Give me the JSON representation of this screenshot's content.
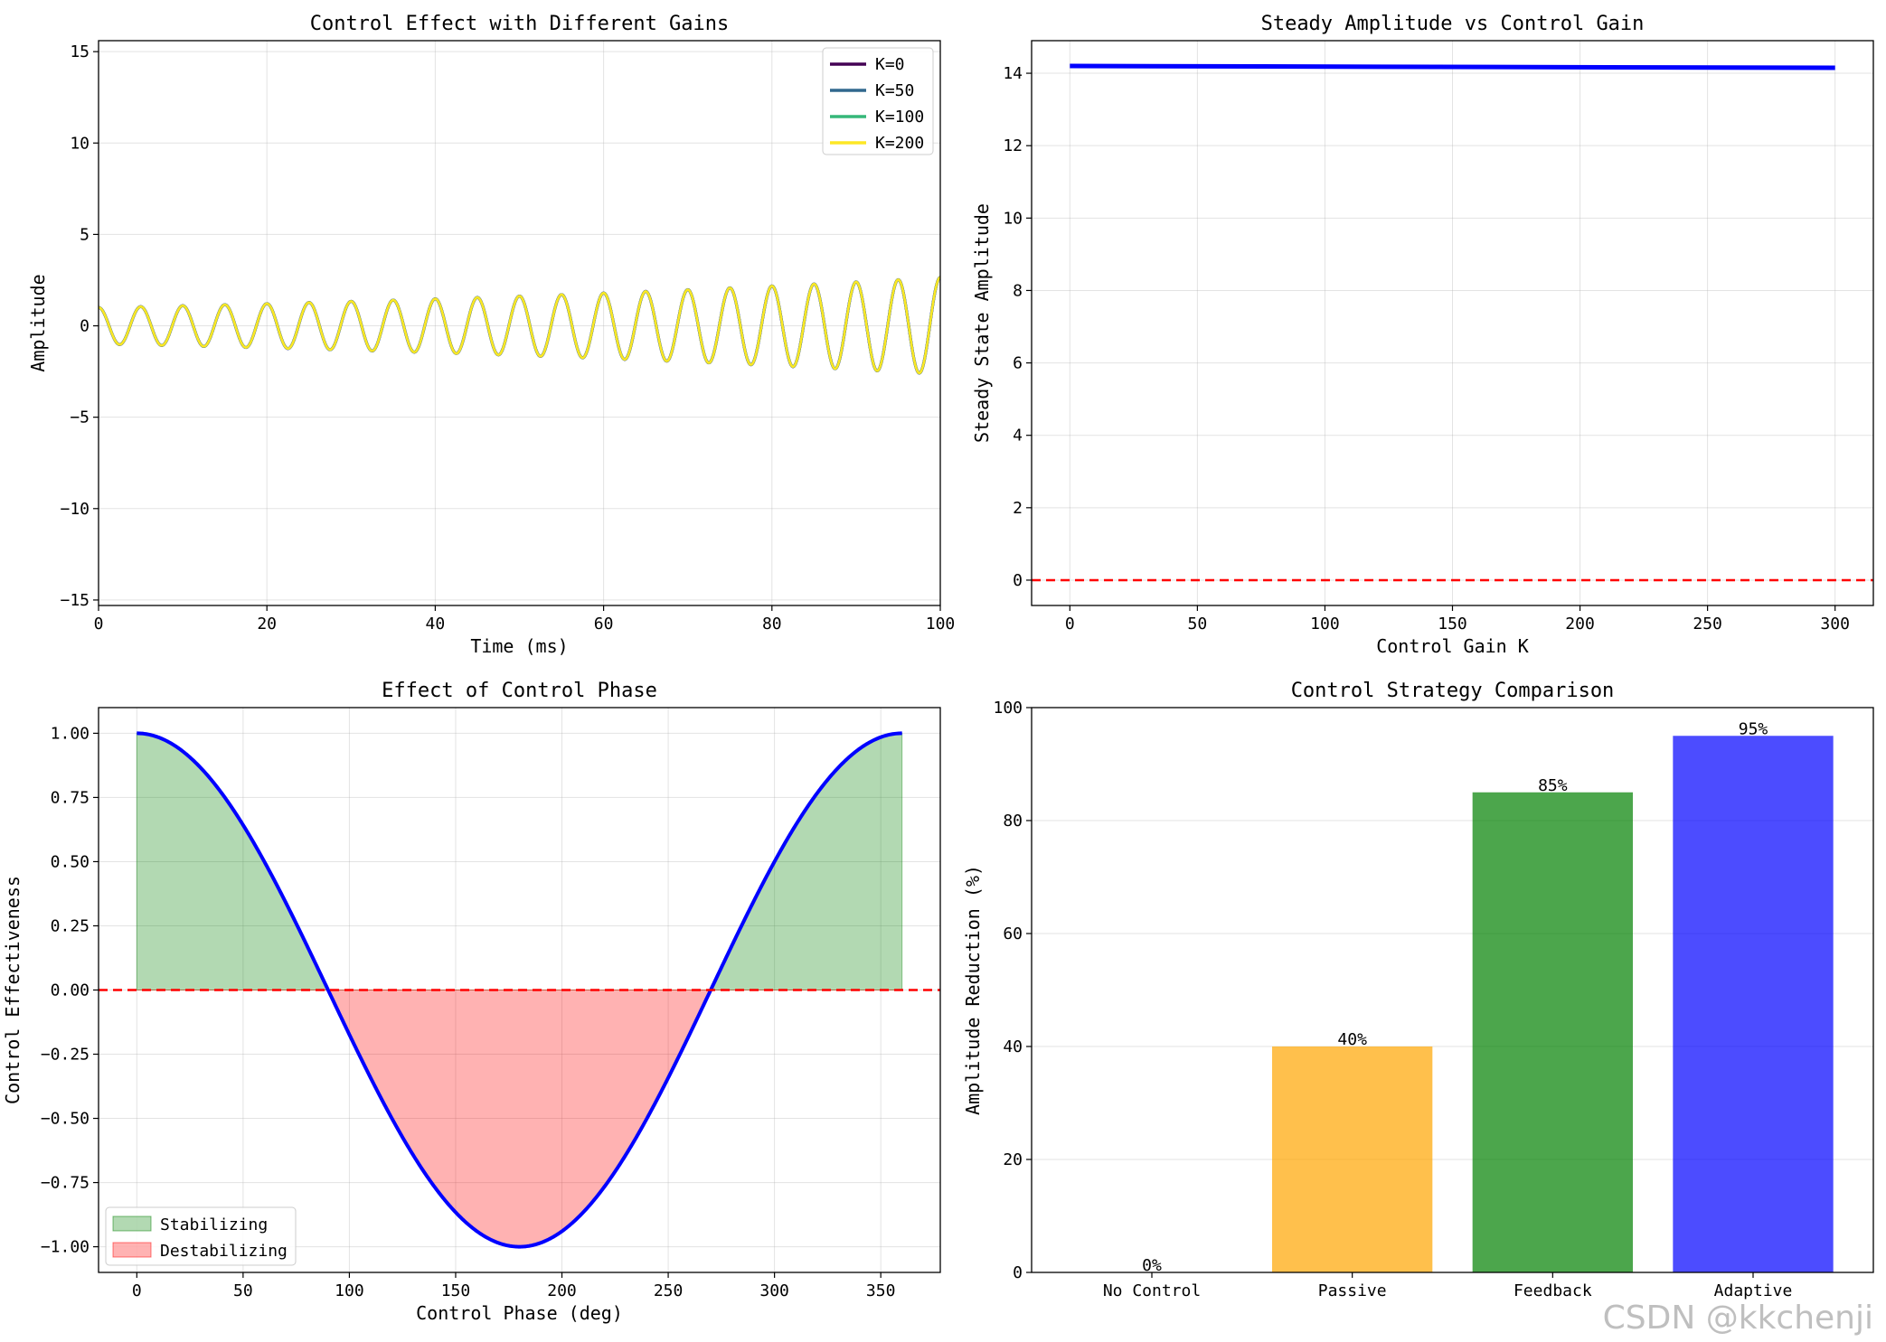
{
  "watermark": "CSDN @kkchenji",
  "chart_data": [
    {
      "id": "gains",
      "type": "line",
      "title": "Control Effect with Different Gains",
      "xlabel": "Time (ms)",
      "ylabel": "Amplitude",
      "xlim": [
        0,
        100
      ],
      "ylim": [
        -15.3,
        15.6
      ],
      "xticks": [
        0,
        20,
        40,
        60,
        80,
        100
      ],
      "yticks": [
        -15,
        -10,
        -5,
        0,
        5,
        10,
        15
      ],
      "grid": true,
      "legend_position": "top-right",
      "signal": {
        "period_ms": 5,
        "start_amplitude": 1.0,
        "end_amplitude": 2.65,
        "duration_ms": 100
      },
      "series": [
        {
          "name": "K=0",
          "color": "#440154"
        },
        {
          "name": "K=50",
          "color": "#31688e"
        },
        {
          "name": "K=100",
          "color": "#35b779"
        },
        {
          "name": "K=200",
          "color": "#fde725"
        }
      ]
    },
    {
      "id": "steady",
      "type": "line",
      "title": "Steady Amplitude vs Control Gain",
      "xlabel": "Control Gain K",
      "ylabel": "Steady State Amplitude",
      "xlim": [
        -15,
        315
      ],
      "ylim": [
        -0.7,
        14.9
      ],
      "xticks": [
        0,
        50,
        100,
        150,
        200,
        250,
        300
      ],
      "yticks": [
        0,
        2,
        4,
        6,
        8,
        10,
        12,
        14
      ],
      "grid": true,
      "series": [
        {
          "name": "steady amplitude",
          "color": "#0000ff",
          "x": [
            0,
            300
          ],
          "y": [
            14.2,
            14.15
          ]
        }
      ],
      "reference_line": {
        "y": 0,
        "color": "#ff0000",
        "style": "dashed"
      }
    },
    {
      "id": "phase",
      "type": "area",
      "title": "Effect of Control Phase",
      "xlabel": "Control Phase (deg)",
      "ylabel": "Control Effectiveness",
      "xlim": [
        -18,
        378
      ],
      "ylim": [
        -1.1,
        1.1
      ],
      "xticks": [
        0,
        50,
        100,
        150,
        200,
        250,
        300,
        350
      ],
      "yticks": [
        -1.0,
        -0.75,
        -0.5,
        -0.25,
        0.0,
        0.25,
        0.5,
        0.75,
        1.0
      ],
      "ytick_labels": [
        "−1.00",
        "−0.75",
        "−0.50",
        "−0.25",
        "0.00",
        "0.25",
        "0.50",
        "0.75",
        "1.00"
      ],
      "grid": true,
      "function": "cos(phase)",
      "phase_range": [
        0,
        360
      ],
      "line_color": "#0000ff",
      "reference_line": {
        "y": 0,
        "color": "#ff0000",
        "style": "dashed"
      },
      "legend_position": "bottom-left",
      "fills": [
        {
          "name": "Stabilizing",
          "color": "#008000",
          "alpha": 0.3
        },
        {
          "name": "Destabilizing",
          "color": "#ff0000",
          "alpha": 0.3
        }
      ]
    },
    {
      "id": "strategy",
      "type": "bar",
      "title": "Control Strategy Comparison",
      "xlabel": "",
      "ylabel": "Amplitude Reduction (%)",
      "ylim": [
        0,
        100
      ],
      "yticks": [
        0,
        20,
        40,
        60,
        80,
        100
      ],
      "grid": true,
      "categories": [
        "No Control",
        "Passive",
        "Feedback",
        "Adaptive"
      ],
      "values": [
        0,
        40,
        85,
        95
      ],
      "data_labels": [
        "0%",
        "40%",
        "85%",
        "95%"
      ],
      "colors": [
        "#808080",
        "#ffa500",
        "#008000",
        "#0000ff"
      ],
      "alpha": 0.7
    }
  ]
}
